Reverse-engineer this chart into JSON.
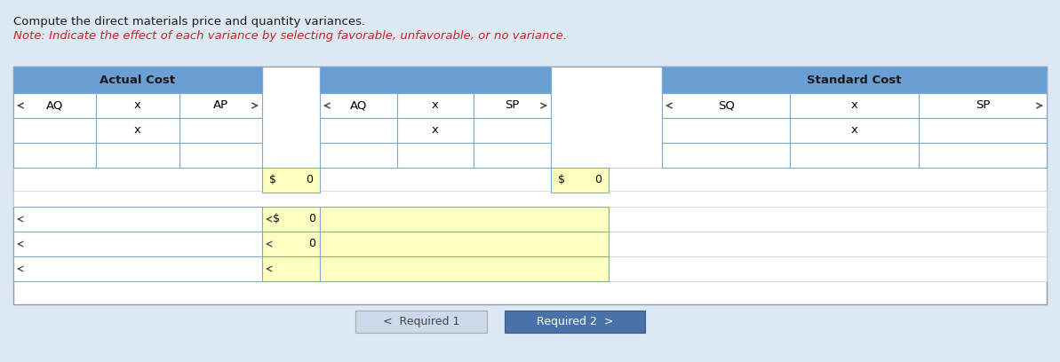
{
  "title_line1": "Compute the direct materials price and quantity variances.",
  "title_line2": "Note: Indicate the effect of each variance by selecting favorable, unfavorable, or no variance.",
  "bg_header_color": "#dce9f5",
  "col_header_blue": "#6b9fd4",
  "cell_border": "#7aaad4",
  "bg_white": "#ffffff",
  "bg_yellow": "#ffffc0",
  "border_color": "#aaaaaa",
  "text_dark": "#1a1a1a",
  "text_red": "#cc2222",
  "btn1_bg": "#ccd9ea",
  "btn2_bg": "#4a72a8",
  "btn_text1": "<  Required 1",
  "btn_text2": "Required 2  >"
}
